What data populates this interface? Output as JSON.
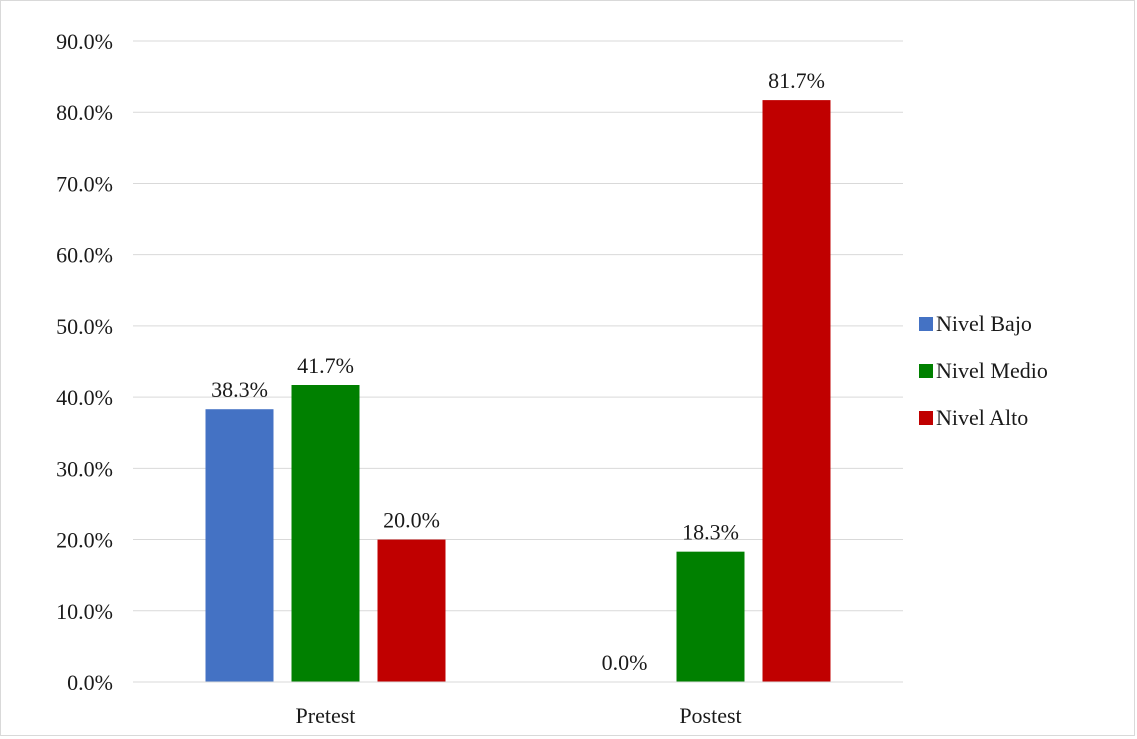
{
  "chart_data": {
    "type": "bar",
    "title": "",
    "xlabel": "",
    "ylabel": "",
    "categories": [
      "Pretest",
      "Postest"
    ],
    "series": [
      {
        "name": "Nivel Bajo",
        "color": "#4472C4",
        "values": [
          38.3,
          0.0
        ],
        "labels": [
          "38.3%",
          "0.0%"
        ]
      },
      {
        "name": "Nivel Medio",
        "color": "#008000",
        "values": [
          41.7,
          18.3
        ],
        "labels": [
          "41.7%",
          "18.3%"
        ]
      },
      {
        "name": "Nivel Alto",
        "color": "#C00000",
        "values": [
          20.0,
          81.7
        ],
        "labels": [
          "20.0%",
          "81.7%"
        ]
      }
    ],
    "ylim": [
      0,
      90
    ],
    "yticks": [
      0,
      10,
      20,
      30,
      40,
      50,
      60,
      70,
      80,
      90
    ],
    "ytick_labels": [
      "0.0%",
      "10.0%",
      "20.0%",
      "30.0%",
      "40.0%",
      "50.0%",
      "60.0%",
      "70.0%",
      "80.0%",
      "90.0%"
    ],
    "grid": true,
    "legend_position": "right"
  }
}
